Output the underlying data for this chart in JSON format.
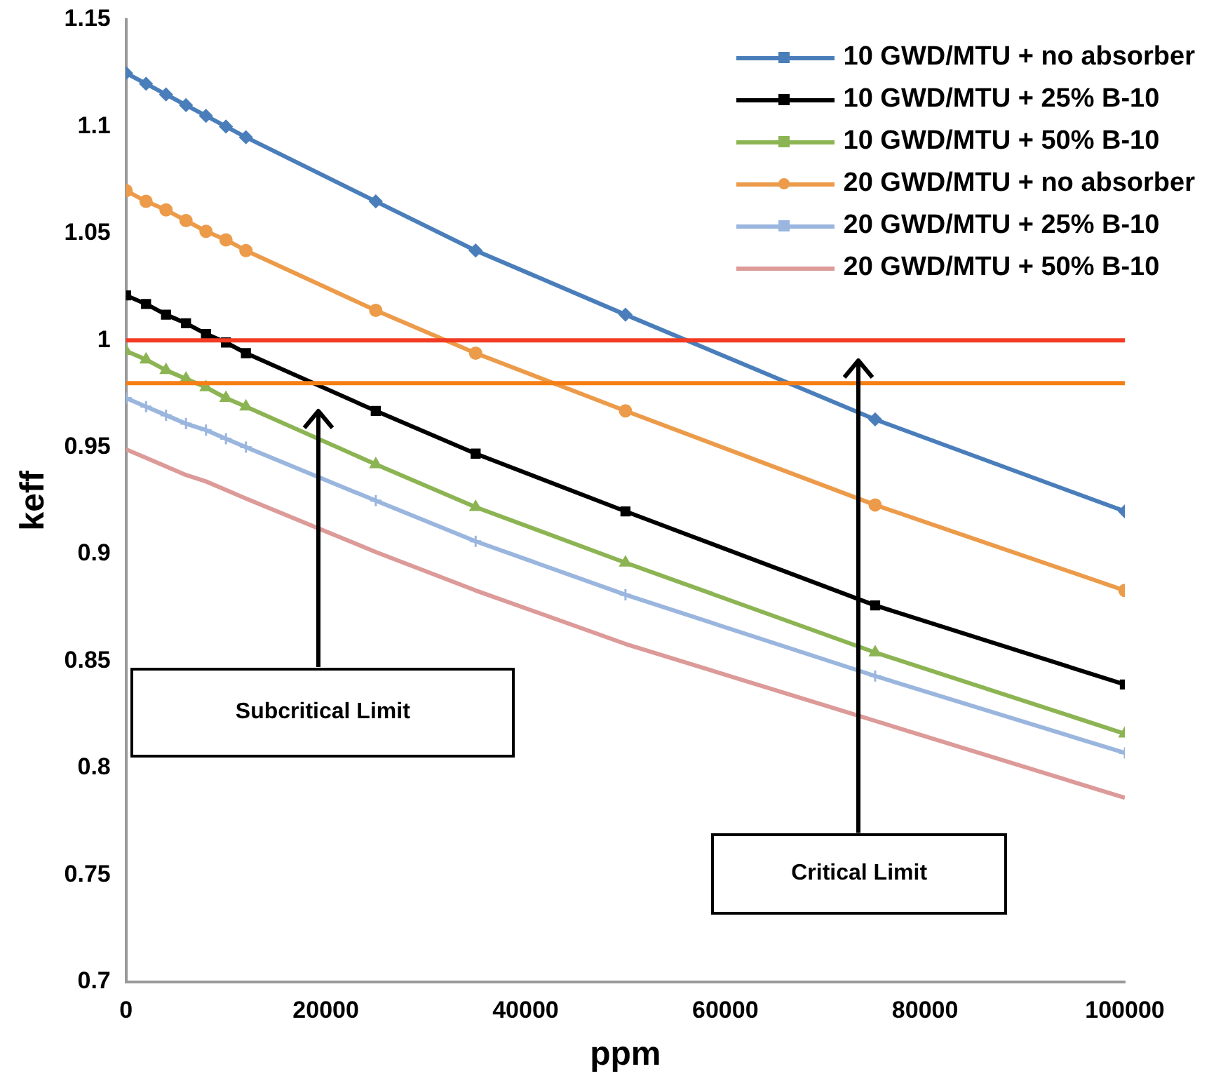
{
  "chart_data": {
    "type": "line",
    "xlabel": "ppm",
    "ylabel": "keff",
    "x": [
      0,
      2000,
      4000,
      6000,
      8000,
      10000,
      12000,
      25000,
      35000,
      50000,
      75000,
      100000
    ],
    "series": [
      {
        "name": "10 GWD/MTU + no absorber",
        "color": "#4a7ebb",
        "marker": "diamond",
        "values": [
          1.125,
          1.12,
          1.115,
          1.11,
          1.105,
          1.1,
          1.095,
          1.065,
          1.042,
          1.012,
          0.963,
          0.92
        ]
      },
      {
        "name": "10 GWD/MTU + 25% B-10",
        "color": "#000000",
        "marker": "square",
        "values": [
          1.021,
          1.017,
          1.012,
          1.008,
          1.003,
          0.999,
          0.994,
          0.967,
          0.947,
          0.92,
          0.876,
          0.839
        ]
      },
      {
        "name": "10 GWD/MTU + 50% B-10",
        "color": "#8cb453",
        "marker": "triangle",
        "values": [
          0.995,
          0.991,
          0.986,
          0.982,
          0.978,
          0.973,
          0.969,
          0.942,
          0.922,
          0.896,
          0.854,
          0.816
        ]
      },
      {
        "name": "20 GWD/MTU + no absorber",
        "color": "#ec9b4a",
        "marker": "circle",
        "values": [
          1.07,
          1.065,
          1.061,
          1.056,
          1.051,
          1.047,
          1.042,
          1.014,
          0.994,
          0.967,
          0.923,
          0.883
        ]
      },
      {
        "name": "20 GWD/MTU + 25% B-10",
        "color": "#9ab6de",
        "marker": "cross",
        "values": [
          0.973,
          0.969,
          0.965,
          0.961,
          0.958,
          0.954,
          0.95,
          0.925,
          0.906,
          0.881,
          0.843,
          0.807
        ]
      },
      {
        "name": "20 GWD/MTU + 50% B-10",
        "color": "#dc9a98",
        "marker": "none",
        "values": [
          0.949,
          0.945,
          0.941,
          0.937,
          0.934,
          0.93,
          0.926,
          0.901,
          0.883,
          0.858,
          0.822,
          0.786
        ]
      }
    ],
    "xlim": [
      0,
      100000
    ],
    "xticks": [
      0,
      20000,
      40000,
      60000,
      80000,
      100000
    ],
    "ylim": [
      0.7,
      1.15
    ],
    "yticks": [
      0.7,
      0.75,
      0.8,
      0.85,
      0.9,
      0.95,
      1,
      1.05,
      1.1,
      1.15
    ],
    "ref_lines": [
      {
        "axis": "y",
        "value": 1,
        "color": "#f23b22"
      },
      {
        "axis": "y",
        "value": 0.98,
        "color": "#f57f17"
      }
    ],
    "annotations": [
      "Subcritical Limit",
      "Critical Limit"
    ],
    "legend": "top right",
    "grid": false
  }
}
